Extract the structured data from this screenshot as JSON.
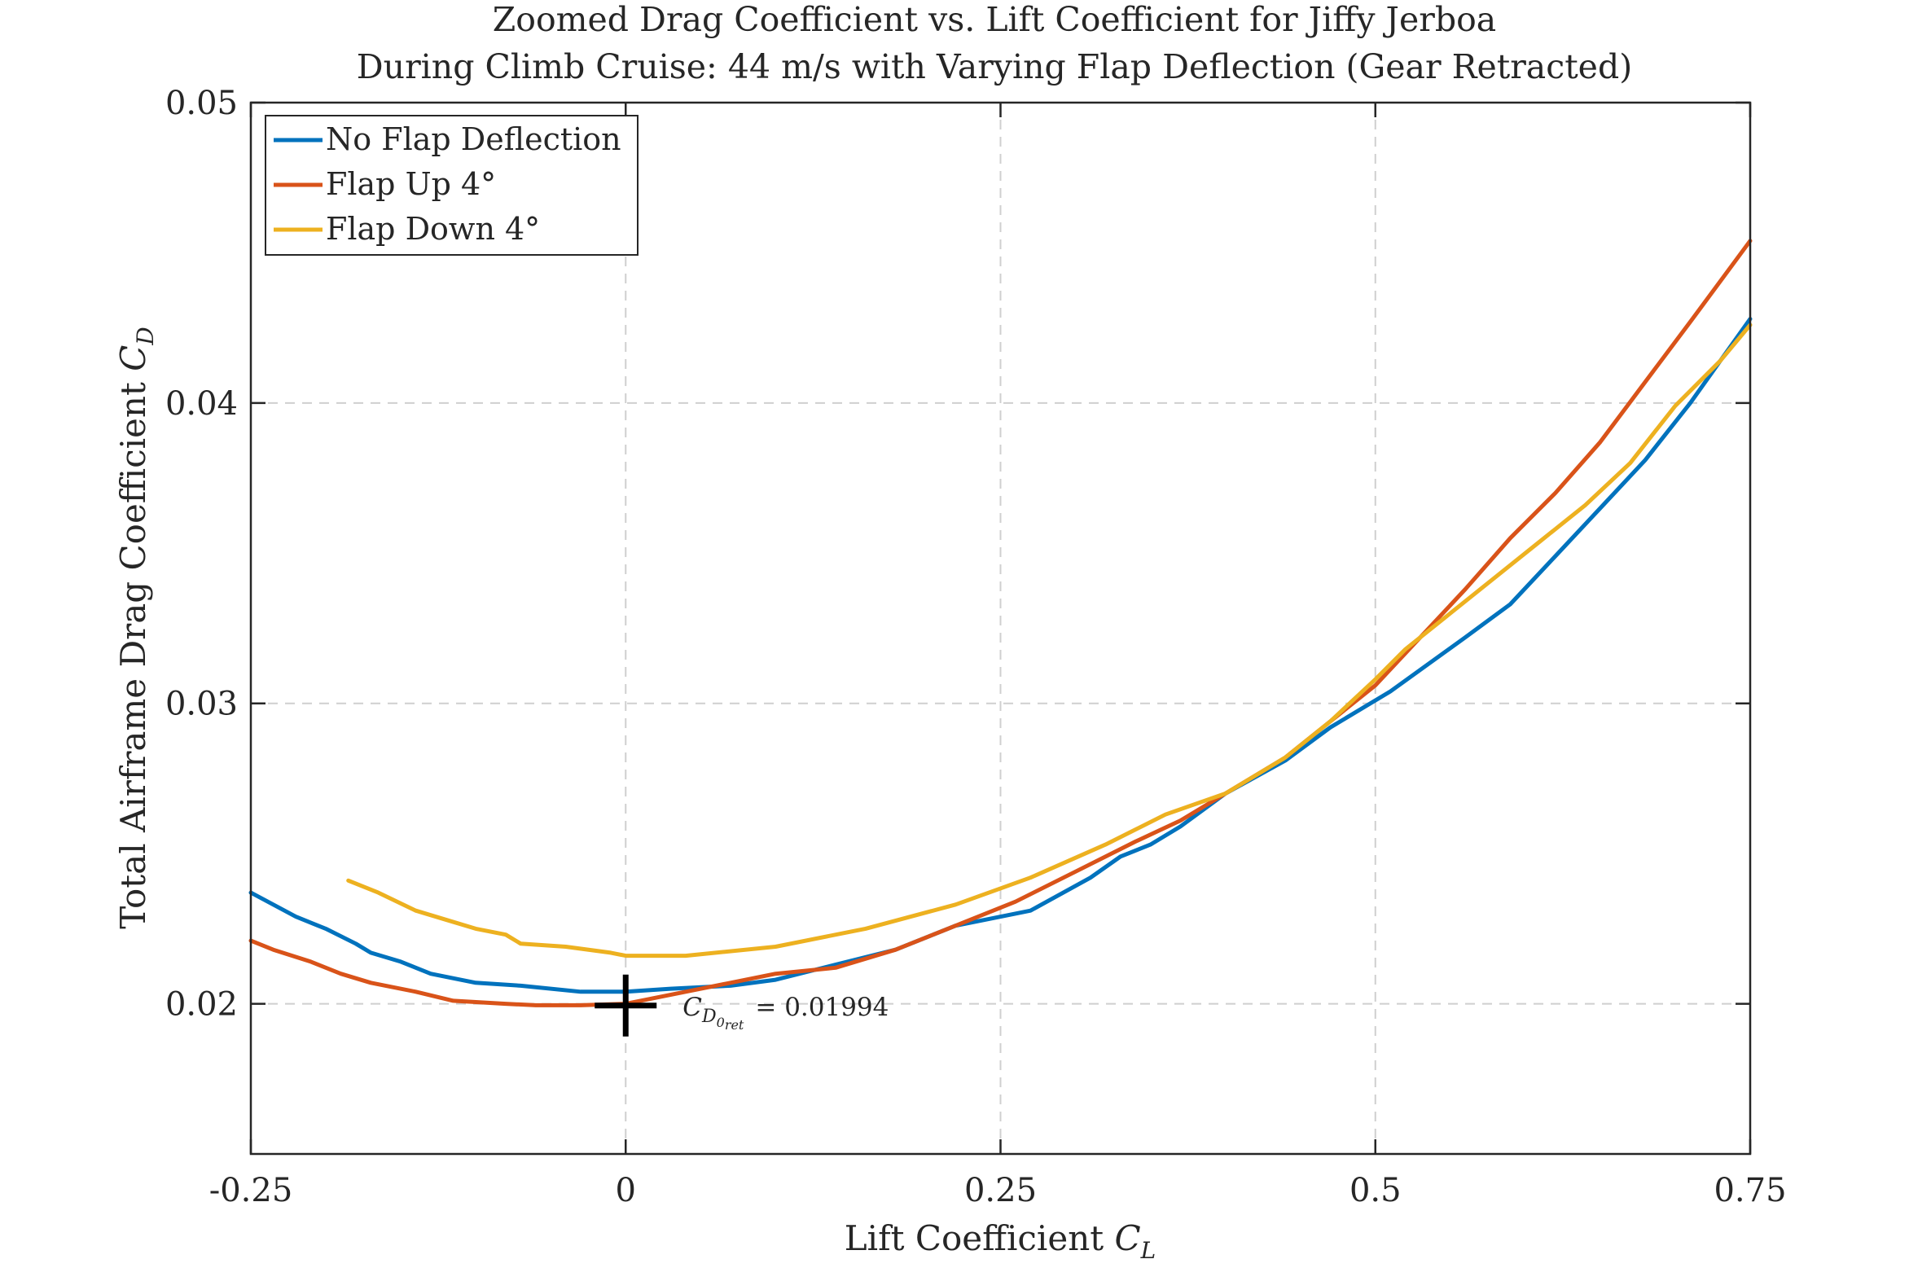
{
  "chart_data": {
    "type": "line",
    "title": "Zoomed Drag Coefficient vs. Lift Coefficient for Jiffy Jerboa",
    "subtitle": "During Climb Cruise: 44 m/s with Varying Flap Deflection (Gear Retracted)",
    "xlabel": {
      "text": "Lift Coefficient ",
      "math": "C",
      "sub": "L"
    },
    "ylabel": {
      "text": "Total Airframe Drag Coefficient ",
      "math": "C",
      "sub": "D"
    },
    "xlim": [
      -0.25,
      0.75
    ],
    "ylim": [
      0.015,
      0.05
    ],
    "x_ticks": [
      -0.25,
      0,
      0.25,
      0.5,
      0.75
    ],
    "x_tick_labels": [
      "-0.25",
      "0",
      "0.25",
      "0.5",
      "0.75"
    ],
    "y_ticks": [
      0.02,
      0.03,
      0.04,
      0.05
    ],
    "y_tick_labels": [
      "0.02",
      "0.03",
      "0.04",
      "0.05"
    ],
    "grid": true,
    "legend_position": "top-left",
    "series": [
      {
        "name": "No Flap Deflection",
        "color": "#0072BD",
        "points": [
          [
            -0.25,
            0.0237
          ],
          [
            -0.235,
            0.0233
          ],
          [
            -0.22,
            0.0229
          ],
          [
            -0.2,
            0.0225
          ],
          [
            -0.18,
            0.022
          ],
          [
            -0.17,
            0.0217
          ],
          [
            -0.15,
            0.0214
          ],
          [
            -0.13,
            0.021
          ],
          [
            -0.1,
            0.0207
          ],
          [
            -0.07,
            0.0206
          ],
          [
            -0.03,
            0.0204
          ],
          [
            0.0,
            0.0204
          ],
          [
            0.03,
            0.0205
          ],
          [
            0.07,
            0.0206
          ],
          [
            0.1,
            0.0208
          ],
          [
            0.14,
            0.0213
          ],
          [
            0.18,
            0.0218
          ],
          [
            0.22,
            0.0226
          ],
          [
            0.24,
            0.0228
          ],
          [
            0.27,
            0.0231
          ],
          [
            0.31,
            0.0242
          ],
          [
            0.33,
            0.0249
          ],
          [
            0.35,
            0.0253
          ],
          [
            0.37,
            0.0259
          ],
          [
            0.4,
            0.027
          ],
          [
            0.44,
            0.0281
          ],
          [
            0.47,
            0.0292
          ],
          [
            0.51,
            0.0304
          ],
          [
            0.56,
            0.0322
          ],
          [
            0.59,
            0.0333
          ],
          [
            0.62,
            0.0349
          ],
          [
            0.65,
            0.0365
          ],
          [
            0.68,
            0.0381
          ],
          [
            0.71,
            0.04
          ],
          [
            0.73,
            0.0414
          ],
          [
            0.75,
            0.0428
          ]
        ]
      },
      {
        "name": "Flap Up 4°",
        "color": "#D95319",
        "points": [
          [
            -0.25,
            0.0221
          ],
          [
            -0.235,
            0.0218
          ],
          [
            -0.21,
            0.0214
          ],
          [
            -0.19,
            0.021
          ],
          [
            -0.17,
            0.0207
          ],
          [
            -0.14,
            0.0204
          ],
          [
            -0.115,
            0.0201
          ],
          [
            -0.08,
            0.02
          ],
          [
            -0.06,
            0.01995
          ],
          [
            -0.03,
            0.01995
          ],
          [
            0.0,
            0.02
          ],
          [
            0.04,
            0.0204
          ],
          [
            0.07,
            0.0207
          ],
          [
            0.1,
            0.021
          ],
          [
            0.14,
            0.0212
          ],
          [
            0.18,
            0.0218
          ],
          [
            0.22,
            0.0226
          ],
          [
            0.26,
            0.0234
          ],
          [
            0.3,
            0.0244
          ],
          [
            0.34,
            0.0254
          ],
          [
            0.37,
            0.0261
          ],
          [
            0.4,
            0.027
          ],
          [
            0.44,
            0.0282
          ],
          [
            0.47,
            0.0294
          ],
          [
            0.5,
            0.0306
          ],
          [
            0.53,
            0.0322
          ],
          [
            0.56,
            0.0338
          ],
          [
            0.59,
            0.0355
          ],
          [
            0.62,
            0.037
          ],
          [
            0.65,
            0.0387
          ],
          [
            0.68,
            0.0407
          ],
          [
            0.71,
            0.0427
          ],
          [
            0.75,
            0.0454
          ]
        ]
      },
      {
        "name": "Flap Down 4°",
        "color": "#EDB120",
        "points": [
          [
            -0.185,
            0.0241
          ],
          [
            -0.165,
            0.0237
          ],
          [
            -0.14,
            0.0231
          ],
          [
            -0.12,
            0.0228
          ],
          [
            -0.1,
            0.0225
          ],
          [
            -0.08,
            0.0223
          ],
          [
            -0.07,
            0.022
          ],
          [
            -0.04,
            0.0219
          ],
          [
            -0.01,
            0.0217
          ],
          [
            0.0,
            0.0216
          ],
          [
            0.04,
            0.0216
          ],
          [
            0.1,
            0.0219
          ],
          [
            0.16,
            0.0225
          ],
          [
            0.22,
            0.0233
          ],
          [
            0.27,
            0.0242
          ],
          [
            0.32,
            0.0253
          ],
          [
            0.36,
            0.0263
          ],
          [
            0.4,
            0.027
          ],
          [
            0.44,
            0.0282
          ],
          [
            0.47,
            0.0294
          ],
          [
            0.5,
            0.0308
          ],
          [
            0.52,
            0.0318
          ],
          [
            0.55,
            0.033
          ],
          [
            0.58,
            0.0342
          ],
          [
            0.61,
            0.0354
          ],
          [
            0.64,
            0.0366
          ],
          [
            0.67,
            0.038
          ],
          [
            0.7,
            0.0399
          ],
          [
            0.73,
            0.0414
          ],
          [
            0.75,
            0.0426
          ]
        ]
      }
    ],
    "marker": {
      "x": 0,
      "y": 0.01994,
      "symbol": "+",
      "color": "#000000",
      "label": {
        "math": "C",
        "sub": "D",
        "subsub": "0",
        "subsub2": "ret",
        "text": "= 0.01994"
      }
    }
  }
}
